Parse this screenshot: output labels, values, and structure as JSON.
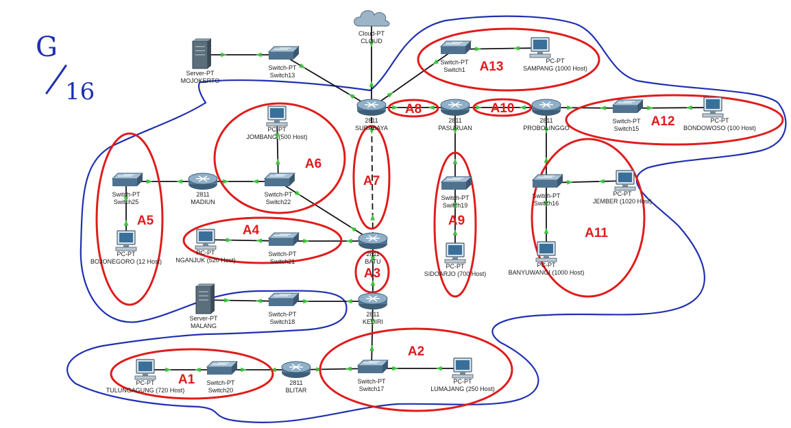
{
  "annotation": {
    "top": "G",
    "bottom": "16"
  },
  "colors": {
    "link": "#111111",
    "port_indicator": "#3cc43c",
    "area_outline": "#e01b1b",
    "area_text": "#e01b1b",
    "zone_outline": "#1f2fb0",
    "handwriting": "#1f2fb0",
    "router": "#557a95",
    "switch": "#4f7290",
    "server": "#5b6e7c",
    "pc": "#3a6f9a"
  },
  "devices": [
    {
      "id": "cloud",
      "icon": "cloud-icon",
      "label": "Cloud-PT\nCLOUD"
    },
    {
      "id": "server_mojokerto",
      "icon": "server-icon",
      "label": "Server-PT\nMOJOKERTO"
    },
    {
      "id": "switch13",
      "icon": "switch-icon",
      "label": "Switch-PT\nSwitch13"
    },
    {
      "id": "switch1",
      "icon": "switch-icon",
      "label": "Switch-PT\nSwitch1"
    },
    {
      "id": "pc_sampang",
      "icon": "pc-icon",
      "label": "PC-PT\nSAMPANG (1000 Host)"
    },
    {
      "id": "r_surabaya",
      "icon": "router-icon",
      "label": "2811\nSURABAYA"
    },
    {
      "id": "r_pasuruan",
      "icon": "router-icon",
      "label": "2811\nPASURUAN"
    },
    {
      "id": "r_probolinggo",
      "icon": "router-icon",
      "label": "2811\nPROBOLINGGO"
    },
    {
      "id": "switch15",
      "icon": "switch-icon",
      "label": "Switch-PT\nSwitch15"
    },
    {
      "id": "pc_bondowoso",
      "icon": "pc-icon",
      "label": "PC-PT\nBONDOWOSO (100 Host)"
    },
    {
      "id": "pc_jombang",
      "icon": "pc-icon",
      "label": "PC-PT\nJOMBANG (500 Host)"
    },
    {
      "id": "switch25",
      "icon": "switch-icon",
      "label": "Switch-PT\nSwitch25"
    },
    {
      "id": "r_madiun",
      "icon": "router-icon",
      "label": "2811\nMADIUN"
    },
    {
      "id": "switch22",
      "icon": "switch-icon",
      "label": "Switch-PT\nSwitch22"
    },
    {
      "id": "switch19",
      "icon": "switch-icon",
      "label": "Switch-PT\nSwitch19"
    },
    {
      "id": "switch16",
      "icon": "switch-icon",
      "label": "Switch-PT\nSwitch16"
    },
    {
      "id": "pc_jember",
      "icon": "pc-icon",
      "label": "PC-PT\nJEMBER (1020 Host)"
    },
    {
      "id": "pc_bojonegoro",
      "icon": "pc-icon",
      "label": "PC-PT\nBOJONEGORO (12 Host)"
    },
    {
      "id": "pc_nganjuk",
      "icon": "pc-icon",
      "label": "PC-PT\nNGANJUK (520 Host)"
    },
    {
      "id": "switch21",
      "icon": "switch-icon",
      "label": "Switch-PT\nSwitch21"
    },
    {
      "id": "r_batu",
      "icon": "router-icon",
      "label": "2811\nBATU"
    },
    {
      "id": "pc_sidoarjo",
      "icon": "pc-icon",
      "label": "PC-PT\nSIDOARJO (700 Host)"
    },
    {
      "id": "pc_banyuwangi",
      "icon": "pc-icon",
      "label": "PC-PT\nBANYUWANGI (1000 Host)"
    },
    {
      "id": "server_malang",
      "icon": "server-icon",
      "label": "Server-PT\nMALANG"
    },
    {
      "id": "switch18",
      "icon": "switch-icon",
      "label": "Switch-PT\nSwitch18"
    },
    {
      "id": "r_kediri",
      "icon": "router-icon",
      "label": "2811\nKEDIRI"
    },
    {
      "id": "pc_tulungagung",
      "icon": "pc-icon",
      "label": "PC-PT\nTULUNGAGUNG (720 Host)"
    },
    {
      "id": "switch20",
      "icon": "switch-icon",
      "label": "Switch-PT\nSwitch20"
    },
    {
      "id": "r_blitar",
      "icon": "router-icon",
      "label": "2811\nBLITAR"
    },
    {
      "id": "switch17",
      "icon": "switch-icon",
      "label": "Switch-PT\nSwitch17"
    },
    {
      "id": "pc_lumajang",
      "icon": "pc-icon",
      "label": "PC-PT\nLUMAJANG (250 Host)"
    }
  ],
  "links": [
    {
      "from": "server_mojokerto",
      "to": "switch13"
    },
    {
      "from": "switch13",
      "to": "r_surabaya"
    },
    {
      "from": "cloud",
      "to": "r_surabaya"
    },
    {
      "from": "switch1",
      "to": "r_surabaya"
    },
    {
      "from": "switch1",
      "to": "pc_sampang"
    },
    {
      "from": "r_surabaya",
      "to": "r_pasuruan"
    },
    {
      "from": "r_pasuruan",
      "to": "r_probolinggo"
    },
    {
      "from": "r_probolinggo",
      "to": "switch15"
    },
    {
      "from": "switch15",
      "to": "pc_bondowoso"
    },
    {
      "from": "r_surabaya",
      "to": "r_batu",
      "style": "dashed"
    },
    {
      "from": "r_pasuruan",
      "to": "switch19"
    },
    {
      "from": "switch19",
      "to": "pc_sidoarjo"
    },
    {
      "from": "r_probolinggo",
      "to": "switch16"
    },
    {
      "from": "switch16",
      "to": "pc_jember"
    },
    {
      "from": "switch16",
      "to": "pc_banyuwangi"
    },
    {
      "from": "switch25",
      "to": "r_madiun"
    },
    {
      "from": "r_madiun",
      "to": "switch22"
    },
    {
      "from": "switch22",
      "to": "pc_jombang"
    },
    {
      "from": "switch22",
      "to": "r_batu"
    },
    {
      "from": "switch25",
      "to": "pc_bojonegoro"
    },
    {
      "from": "pc_nganjuk",
      "to": "switch21"
    },
    {
      "from": "switch21",
      "to": "r_batu"
    },
    {
      "from": "r_batu",
      "to": "r_kediri"
    },
    {
      "from": "server_malang",
      "to": "switch18"
    },
    {
      "from": "switch18",
      "to": "r_kediri"
    },
    {
      "from": "r_kediri",
      "to": "switch17"
    },
    {
      "from": "pc_tulungagung",
      "to": "switch20"
    },
    {
      "from": "switch20",
      "to": "r_blitar"
    },
    {
      "from": "r_blitar",
      "to": "switch17"
    },
    {
      "from": "switch17",
      "to": "pc_lumajang"
    }
  ],
  "areas": [
    {
      "id": "A1",
      "label": "A1"
    },
    {
      "id": "A2",
      "label": "A2"
    },
    {
      "id": "A3",
      "label": "A3"
    },
    {
      "id": "A4",
      "label": "A4"
    },
    {
      "id": "A5",
      "label": "A5"
    },
    {
      "id": "A6",
      "label": "A6"
    },
    {
      "id": "A7",
      "label": "A7"
    },
    {
      "id": "A8",
      "label": "A8"
    },
    {
      "id": "A9",
      "label": "A9"
    },
    {
      "id": "A10",
      "label": "A10"
    },
    {
      "id": "A11",
      "label": "A11"
    },
    {
      "id": "A12",
      "label": "A12"
    },
    {
      "id": "A13",
      "label": "A13"
    }
  ]
}
